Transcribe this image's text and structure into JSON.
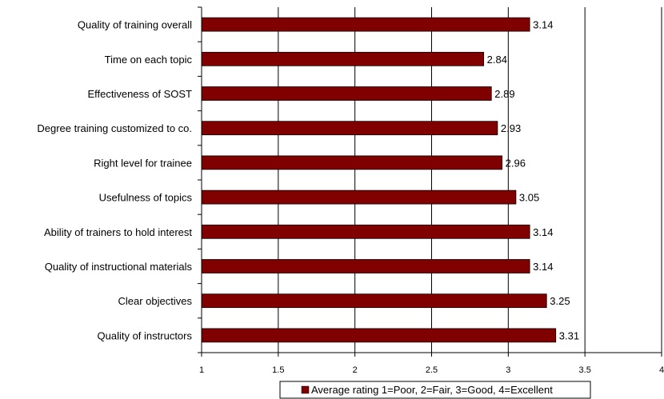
{
  "chart_data": {
    "type": "bar",
    "orientation": "horizontal",
    "categories": [
      "Quality of training overall",
      "Time on each topic",
      "Effectiveness of SOST",
      "Degree training customized to co.",
      "Right level for trainee",
      "Usefulness of topics",
      "Ability of trainers to hold interest",
      "Quality of instructional materials",
      "Clear objectives",
      "Quality of instructors"
    ],
    "series": [
      {
        "name": "Average rating 1=Poor, 2=Fair, 3=Good, 4=Excellent",
        "values": [
          3.14,
          2.84,
          2.89,
          2.93,
          2.96,
          3.05,
          3.14,
          3.14,
          3.25,
          3.31
        ],
        "data_labels": [
          "3.14",
          "2.84",
          "2.89",
          "2.93",
          "2.96",
          "3.05",
          "3.14",
          "3.14",
          "3.25",
          "3.31"
        ]
      }
    ],
    "xlim": [
      1,
      4
    ],
    "xticks": [
      "1",
      "1.5",
      "2",
      "2.5",
      "3",
      "3.5",
      "4"
    ],
    "grid": true,
    "legend_position": "bottom",
    "bar_color": "#800000",
    "title": "",
    "xlabel": "",
    "ylabel": ""
  }
}
